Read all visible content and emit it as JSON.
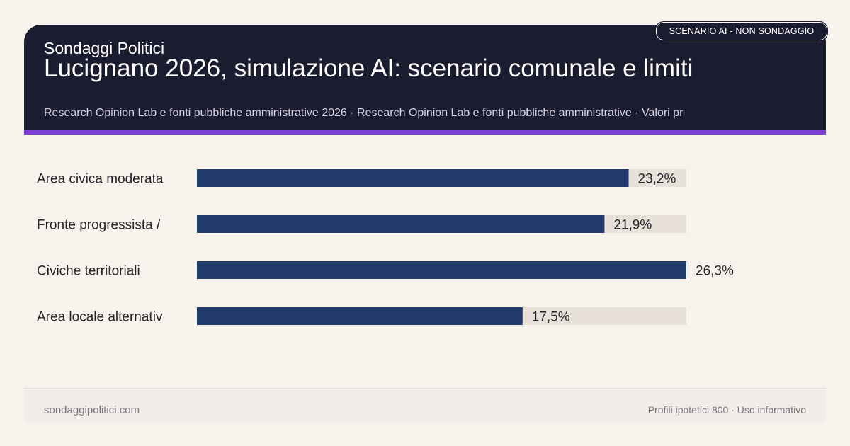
{
  "header": {
    "brand": "Sondaggi Politici",
    "title": "Lucignano 2026, simulazione AI: scenario comunale e limiti",
    "subtitle": "Research Opinion Lab e fonti pubbliche amministrative 2026 · Research Opinion Lab e fonti pubbliche amministrative · Valori pr",
    "badge": "SCENARIO AI - NON SONDAGGIO"
  },
  "colors": {
    "header_bg": "#1c1c31",
    "accent": "#7b3fd8",
    "bar": "#1f3a6b",
    "track": "#e7e1d9",
    "background": "#f7f3ec"
  },
  "chart_data": {
    "type": "bar",
    "orientation": "horizontal",
    "categories": [
      "Area civica moderata",
      "Fronte progressista /",
      "Civiche territoriali",
      "Area locale alternativ"
    ],
    "values": [
      23.2,
      21.9,
      26.3,
      17.5
    ],
    "value_labels": [
      "23,2%",
      "21,9%",
      "26,3%",
      "17,5%"
    ],
    "xlim": [
      0,
      26.3
    ],
    "grid": false
  },
  "footer": {
    "left": "sondaggipolitici.com",
    "right": "Profili ipotetici 800 · Uso informativo"
  }
}
